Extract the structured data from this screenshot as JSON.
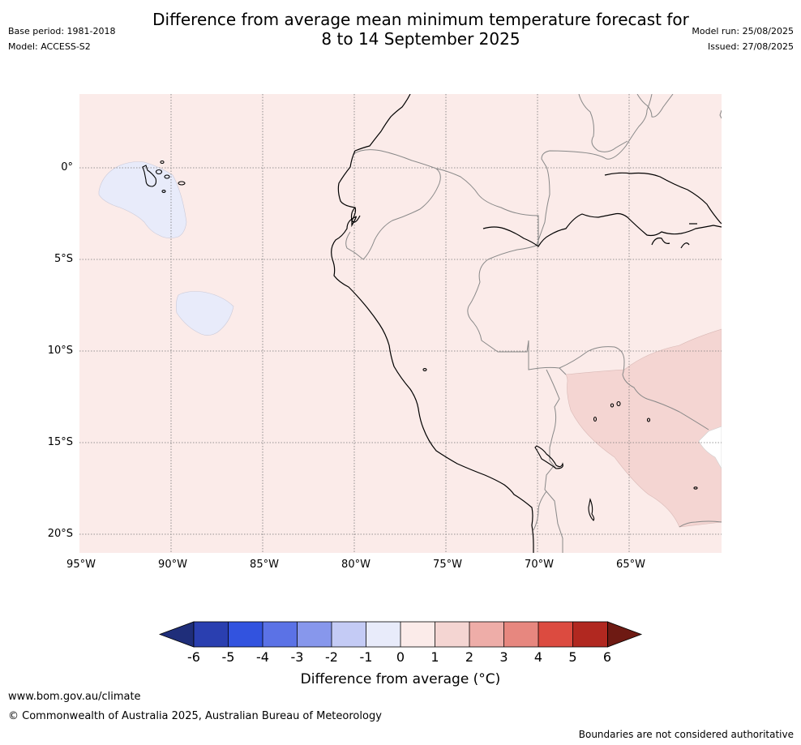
{
  "header": {
    "title_line1": "Difference from average mean minimum temperature forecast for",
    "title_line2": "8 to 14 September 2025",
    "base_period": "Base period: 1981-2018",
    "model": "Model: ACCESS-S2",
    "model_run": "Model run: 25/08/2025",
    "issued": "Issued: 27/08/2025"
  },
  "map": {
    "lat_labels": [
      "0°",
      "5°S",
      "10°S",
      "15°S",
      "20°S"
    ],
    "lon_labels": [
      "95°W",
      "90°W",
      "85°W",
      "80°W",
      "75°W",
      "70°W",
      "65°W"
    ],
    "background_color": "#fbebe9",
    "colors": {
      "neg_0_1": "#e8ebfa",
      "pos_1_2": "#f4d5d2",
      "neutral": "#ffffff",
      "gridline": "#777777",
      "border": "#888888",
      "coast": "#000000"
    }
  },
  "colorbar": {
    "label": "Difference from average (°C)",
    "ticks": [
      "-6",
      "-5",
      "-4",
      "-3",
      "-2",
      "-1",
      "0",
      "1",
      "2",
      "3",
      "4",
      "5",
      "6"
    ],
    "colors": [
      "#1f2e7a",
      "#2a3fb0",
      "#3253df",
      "#5b72e6",
      "#8797ec",
      "#c4cbf5",
      "#e8ebfa",
      "#fbebe9",
      "#f4d5d2",
      "#eeada8",
      "#e7877f",
      "#dc4b40",
      "#b12820",
      "#6e1a13"
    ]
  },
  "footer": {
    "website": "www.bom.gov.au/climate",
    "copyright": "© Commonwealth of Australia 2025, Australian Bureau of Meteorology",
    "disclaimer": "Boundaries are not considered authoritative"
  }
}
